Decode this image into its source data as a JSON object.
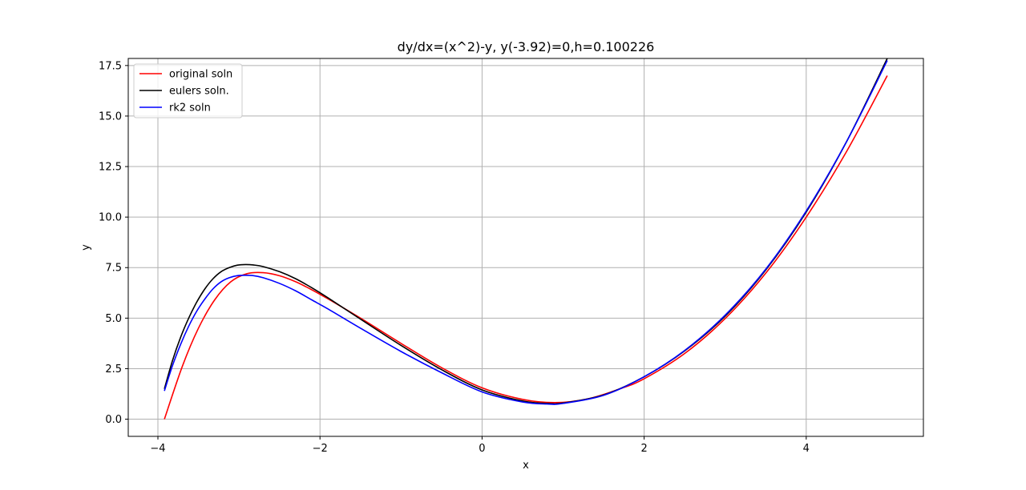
{
  "chart_data": {
    "type": "line",
    "title": "dy/dx=(x^2)-y, y(-3.92)=0,h=0.100226",
    "xlabel": "x",
    "ylabel": "y",
    "xlim": [
      -4.366,
      5.446
    ],
    "ylim": [
      -0.85,
      17.85
    ],
    "xticks": [
      -4,
      -2,
      0,
      2,
      4
    ],
    "xtick_labels": [
      "−4",
      "−2",
      "0",
      "2",
      "4"
    ],
    "yticks": [
      0.0,
      2.5,
      5.0,
      7.5,
      10.0,
      12.5,
      15.0,
      17.5
    ],
    "ytick_labels": [
      "0.0",
      "2.5",
      "5.0",
      "7.5",
      "10.0",
      "12.5",
      "15.0",
      "17.5"
    ],
    "grid": true,
    "legend_position": "top-left",
    "series": [
      {
        "name": "original soln",
        "color": "#ff0000",
        "x": [
          -3.92,
          -3.7,
          -3.5,
          -3.3,
          -3.1,
          -2.9,
          -2.7,
          -2.5,
          -2.3,
          -2.1,
          -1.9,
          -1.5,
          -1.0,
          -0.5,
          0.0,
          0.5,
          0.9,
          1.3,
          1.7,
          2.0,
          2.5,
          3.0,
          3.5,
          4.0,
          4.5,
          5.0
        ],
        "y": [
          0.0,
          2.6,
          4.5,
          5.9,
          6.8,
          7.2,
          7.25,
          7.1,
          6.8,
          6.4,
          5.95,
          5.0,
          3.75,
          2.55,
          1.55,
          0.98,
          0.82,
          1.0,
          1.5,
          2.0,
          3.25,
          4.98,
          7.22,
          10.0,
          13.26,
          17.0
        ]
      },
      {
        "name": "eulers soln.",
        "color": "#000000",
        "x": [
          -3.92,
          -3.82,
          -3.72,
          -3.62,
          -3.52,
          -3.42,
          -3.32,
          -3.22,
          -3.12,
          -3.02,
          -2.92,
          -2.82,
          -2.7,
          -2.5,
          -2.3,
          -2.1,
          -1.9,
          -1.5,
          -1.0,
          -0.5,
          0.0,
          0.5,
          0.8,
          1.0,
          1.5,
          2.0,
          2.5,
          3.0,
          3.5,
          4.0,
          4.5,
          5.0
        ],
        "y": [
          1.5,
          2.9,
          4.05,
          5.0,
          5.8,
          6.45,
          6.95,
          7.3,
          7.5,
          7.62,
          7.65,
          7.63,
          7.55,
          7.3,
          6.95,
          6.5,
          6.0,
          4.95,
          3.65,
          2.45,
          1.45,
          0.9,
          0.78,
          0.8,
          1.2,
          2.1,
          3.38,
          5.1,
          7.38,
          10.25,
          13.75,
          17.85
        ]
      },
      {
        "name": "rk2 soln",
        "color": "#0000ff",
        "x": [
          -3.92,
          -3.82,
          -3.72,
          -3.62,
          -3.52,
          -3.42,
          -3.32,
          -3.22,
          -3.12,
          -3.02,
          -2.92,
          -2.82,
          -2.7,
          -2.5,
          -2.3,
          -2.1,
          -1.9,
          -1.5,
          -1.0,
          -0.5,
          0.0,
          0.5,
          0.8,
          1.0,
          1.5,
          2.0,
          2.5,
          3.0,
          3.5,
          4.0,
          4.5,
          5.0
        ],
        "y": [
          1.4,
          2.65,
          3.7,
          4.6,
          5.35,
          5.95,
          6.45,
          6.8,
          7.0,
          7.1,
          7.12,
          7.1,
          7.0,
          6.72,
          6.35,
          5.9,
          5.45,
          4.5,
          3.35,
          2.3,
          1.35,
          0.85,
          0.75,
          0.78,
          1.18,
          2.1,
          3.4,
          5.15,
          7.42,
          10.3,
          13.75,
          17.75
        ]
      }
    ]
  }
}
